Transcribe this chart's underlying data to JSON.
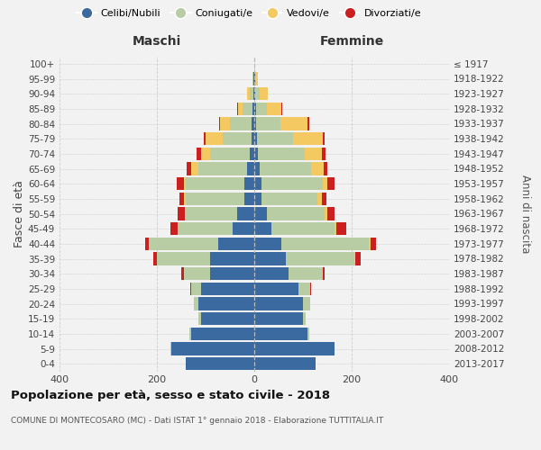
{
  "age_groups": [
    "0-4",
    "5-9",
    "10-14",
    "15-19",
    "20-24",
    "25-29",
    "30-34",
    "35-39",
    "40-44",
    "45-49",
    "50-54",
    "55-59",
    "60-64",
    "65-69",
    "70-74",
    "75-79",
    "80-84",
    "85-89",
    "90-94",
    "95-99",
    "100+"
  ],
  "birth_years": [
    "2013-2017",
    "2008-2012",
    "2003-2007",
    "1998-2002",
    "1993-1997",
    "1988-1992",
    "1983-1987",
    "1978-1982",
    "1973-1977",
    "1968-1972",
    "1963-1967",
    "1958-1962",
    "1953-1957",
    "1948-1952",
    "1943-1947",
    "1938-1942",
    "1933-1937",
    "1928-1932",
    "1923-1927",
    "1918-1922",
    "≤ 1917"
  ],
  "colors": {
    "celibe": "#3b6aa0",
    "coniugato": "#b8cda4",
    "vedovo": "#f5c962",
    "divorziato": "#cc2020"
  },
  "maschi": {
    "celibe": [
      140,
      170,
      130,
      110,
      115,
      110,
      90,
      90,
      75,
      45,
      35,
      20,
      20,
      15,
      10,
      5,
      5,
      4,
      2,
      1,
      0
    ],
    "coniugato": [
      0,
      2,
      3,
      5,
      10,
      20,
      55,
      110,
      140,
      110,
      105,
      120,
      120,
      100,
      80,
      60,
      45,
      20,
      8,
      2,
      0
    ],
    "vedovo": [
      0,
      0,
      0,
      0,
      0,
      0,
      0,
      0,
      2,
      2,
      3,
      5,
      5,
      15,
      20,
      35,
      20,
      10,
      5,
      0,
      0
    ],
    "divorziato": [
      0,
      0,
      0,
      0,
      0,
      2,
      5,
      8,
      8,
      15,
      15,
      8,
      15,
      8,
      8,
      3,
      2,
      1,
      0,
      0,
      0
    ]
  },
  "femmine": {
    "nubile": [
      125,
      165,
      110,
      100,
      100,
      90,
      70,
      65,
      55,
      35,
      25,
      15,
      15,
      12,
      8,
      5,
      4,
      3,
      2,
      1,
      0
    ],
    "coniugata": [
      0,
      0,
      3,
      5,
      15,
      25,
      70,
      140,
      180,
      130,
      120,
      115,
      125,
      105,
      95,
      75,
      50,
      22,
      10,
      2,
      0
    ],
    "vedova": [
      0,
      0,
      0,
      0,
      0,
      0,
      0,
      2,
      3,
      3,
      5,
      8,
      10,
      25,
      35,
      60,
      55,
      30,
      15,
      5,
      0
    ],
    "divorziata": [
      0,
      0,
      0,
      0,
      0,
      2,
      5,
      12,
      12,
      20,
      15,
      10,
      15,
      8,
      8,
      5,
      4,
      2,
      0,
      0,
      0
    ]
  },
  "xlim": 400,
  "title": "Popolazione per età, sesso e stato civile - 2018",
  "subtitle": "COMUNE DI MONTECOSARO (MC) - Dati ISTAT 1° gennaio 2018 - Elaborazione TUTTITALIA.IT",
  "ylabel_left": "Fasce di età",
  "ylabel_right": "Anni di nascita",
  "xlabel_left": "Maschi",
  "xlabel_right": "Femmine",
  "legend_labels": [
    "Celibi/Nubili",
    "Coniugati/e",
    "Vedovi/e",
    "Divorziati/e"
  ],
  "bg_color": "#f2f2f2"
}
